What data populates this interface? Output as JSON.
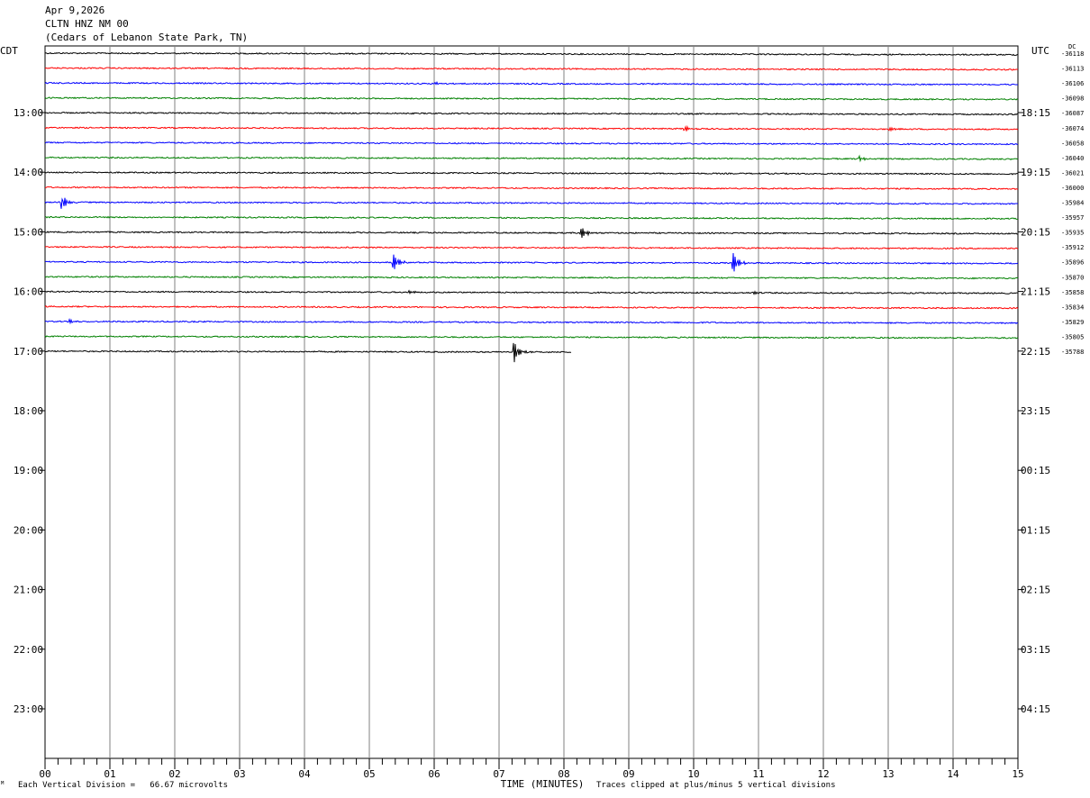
{
  "header": {
    "date": "Apr 9,2026",
    "station": "CLTN HNZ NM 00",
    "location": "(Cedars of Lebanon State Park, TN)"
  },
  "left_tz": "CDT",
  "right_tz": "UTC",
  "dc_label": "DC",
  "footer": {
    "scale_note": "Each Vertical Division =   66.67 microvolts",
    "clip_note": "Traces clipped at plus/minus 5 vertical divisions",
    "mark": "ᴹ"
  },
  "chart_data": {
    "type": "line",
    "title": "",
    "xlabel": "TIME (MINUTES)",
    "xlim": [
      0,
      15
    ],
    "x_ticks": [
      "00",
      "01",
      "02",
      "03",
      "04",
      "05",
      "06",
      "07",
      "08",
      "09",
      "10",
      "11",
      "12",
      "13",
      "14",
      "15"
    ],
    "hour_labels_left": [
      "13:00",
      "14:00",
      "15:00",
      "16:00",
      "17:00",
      "18:00",
      "19:00",
      "20:00",
      "21:00",
      "22:00",
      "23:00"
    ],
    "hour_labels_right": [
      "18:15",
      "19:15",
      "20:15",
      "21:15",
      "22:15",
      "23:15",
      "00:15",
      "01:15",
      "02:15",
      "03:15",
      "04:15"
    ],
    "trace_colors": [
      "#000000",
      "#ff0000",
      "#0000ff",
      "#008000"
    ],
    "dc_offsets": [
      "-36118",
      "-36113",
      "-36106",
      "-36098",
      "-36087",
      "-36074",
      "-36058",
      "-36040",
      "-36021",
      "-36000",
      "-35984",
      "-35957",
      "-35935",
      "-35912",
      "-35896",
      "-35870",
      "-35858",
      "-35834",
      "-35829",
      "-35805",
      "-35788"
    ],
    "traces": [
      {
        "end_min": 15,
        "events": []
      },
      {
        "end_min": 15,
        "events": []
      },
      {
        "end_min": 15,
        "events": [
          {
            "t": 6.0,
            "amp": 2
          }
        ]
      },
      {
        "end_min": 15,
        "events": []
      },
      {
        "end_min": 15,
        "events": []
      },
      {
        "end_min": 15,
        "events": [
          {
            "t": 9.85,
            "amp": 4
          },
          {
            "t": 13.0,
            "amp": 2
          }
        ]
      },
      {
        "end_min": 15,
        "events": []
      },
      {
        "end_min": 15,
        "events": [
          {
            "t": 12.55,
            "amp": 3
          }
        ]
      },
      {
        "end_min": 15,
        "events": []
      },
      {
        "end_min": 15,
        "events": []
      },
      {
        "end_min": 15,
        "events": [
          {
            "t": 0.25,
            "amp": 10
          }
        ]
      },
      {
        "end_min": 15,
        "events": []
      },
      {
        "end_min": 15,
        "events": [
          {
            "t": 8.25,
            "amp": 9
          }
        ]
      },
      {
        "end_min": 15,
        "events": []
      },
      {
        "end_min": 15,
        "events": [
          {
            "t": 5.35,
            "amp": 14
          },
          {
            "t": 10.6,
            "amp": 14
          }
        ]
      },
      {
        "end_min": 15,
        "events": []
      },
      {
        "end_min": 15,
        "events": [
          {
            "t": 5.6,
            "amp": 2
          },
          {
            "t": 10.9,
            "amp": 2
          }
        ]
      },
      {
        "end_min": 15,
        "events": []
      },
      {
        "end_min": 15,
        "events": [
          {
            "t": 0.35,
            "amp": 3
          }
        ]
      },
      {
        "end_min": 15,
        "events": []
      },
      {
        "end_min": 8.12,
        "events": [
          {
            "t": 7.22,
            "amp": 14
          }
        ]
      }
    ]
  }
}
